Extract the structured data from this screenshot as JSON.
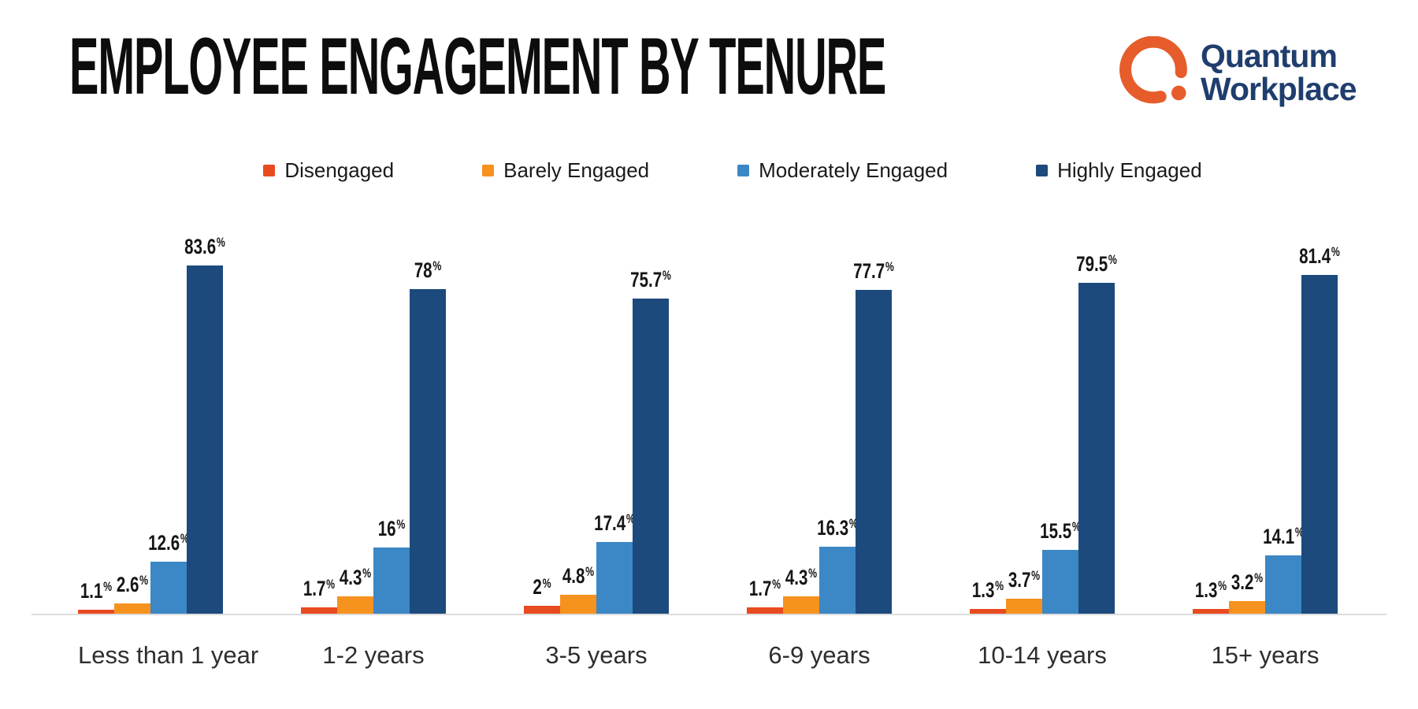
{
  "title": "EMPLOYEE ENGAGEMENT BY TENURE",
  "logo": {
    "line1": "Quantum",
    "line2": "Workplace",
    "orange": "#E65C2B",
    "navy": "#1F3E6E"
  },
  "chart_data": {
    "type": "bar",
    "grouped": true,
    "categories": [
      "Less than 1 year",
      "1-2 years",
      "3-5 years",
      "6-9 years",
      "10-14 years",
      "15+ years"
    ],
    "series": [
      {
        "name": "Disengaged",
        "color": "#E74B1F",
        "values": [
          1.1,
          1.7,
          2,
          1.7,
          1.3,
          1.3
        ],
        "labels": [
          "1.1%",
          "1.7%",
          "2%",
          "1.7%",
          "1.3%",
          "1.3%"
        ]
      },
      {
        "name": "Barely Engaged",
        "color": "#F6921E",
        "values": [
          2.6,
          4.3,
          4.8,
          4.3,
          3.7,
          3.2
        ],
        "labels": [
          "2.6%",
          "4.3%",
          "4.8%",
          "4.3%",
          "3.7%",
          "3.2%"
        ]
      },
      {
        "name": "Moderately Engaged",
        "color": "#3C87C6",
        "values": [
          12.6,
          16,
          17.4,
          16.3,
          15.5,
          14.1
        ],
        "labels": [
          "12.6%",
          "16%",
          "17.4%",
          "16.3%",
          "15.5%",
          "14.1%"
        ]
      },
      {
        "name": "Highly Engaged",
        "color": "#1C4A7D",
        "values": [
          83.6,
          78,
          75.7,
          77.7,
          79.5,
          81.4
        ],
        "labels": [
          "83.6%",
          "78%",
          "75.7%",
          "77.7%",
          "79.5%",
          "81.4%"
        ]
      }
    ],
    "title": "EMPLOYEE ENGAGEMENT BY TENURE",
    "xlabel": "",
    "ylabel": "",
    "ylim": [
      0,
      100
    ],
    "grid": false,
    "legend_position": "top",
    "value_label_format": "percent"
  }
}
